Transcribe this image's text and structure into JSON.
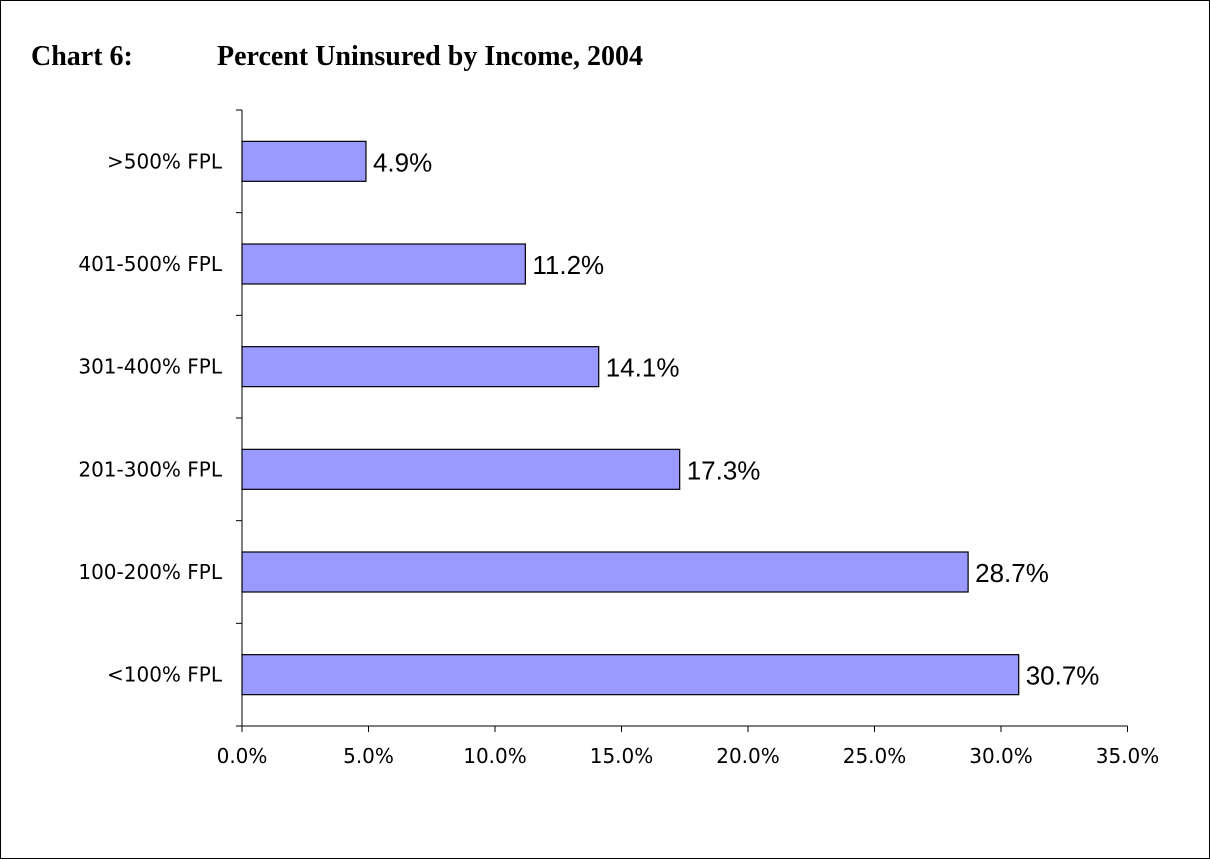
{
  "title": {
    "number": "Chart 6:",
    "text": "Percent Uninsured by Income, 2004"
  },
  "chart_data": {
    "type": "bar",
    "orientation": "horizontal",
    "categories": [
      ">500% FPL",
      "401-500% FPL",
      "301-400% FPL",
      "201-300% FPL",
      "100-200% FPL",
      "<100% FPL"
    ],
    "values": [
      4.9,
      11.2,
      14.1,
      17.3,
      28.7,
      30.7
    ],
    "data_labels": [
      "4.9%",
      "11.2%",
      "14.1%",
      "17.3%",
      "28.7%",
      "30.7%"
    ],
    "x_ticks": [
      0,
      5,
      10,
      15,
      20,
      25,
      30,
      35
    ],
    "x_tick_labels": [
      "0.0%",
      "5.0%",
      "10.0%",
      "15.0%",
      "20.0%",
      "25.0%",
      "30.0%",
      "35.0%"
    ],
    "xlim": [
      0,
      35
    ],
    "grid": false,
    "bar_color": "#9999ff",
    "bar_edge_color": "#000000"
  }
}
